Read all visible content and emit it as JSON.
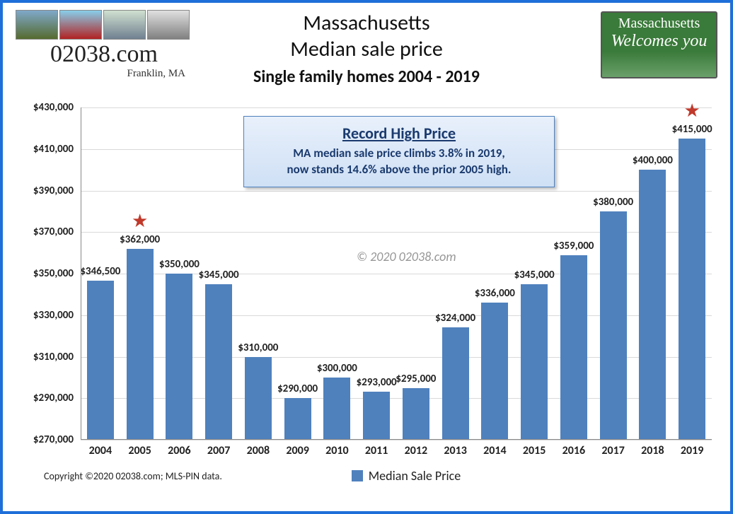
{
  "header": {
    "logo_domain": "02038.com",
    "logo_tagline": "Franklin, MA",
    "title_line1": "Massachusetts",
    "title_line2": "Median sale price",
    "subtitle": "Single family homes 2004 - 2019",
    "badge_line1": "Massachusetts",
    "badge_line2": "Welcomes you"
  },
  "callout": {
    "heading": "Record High Price",
    "body_line1": "MA median sale price climbs 3.8% in 2019,",
    "body_line2": "now stands 14.6% above the prior 2005 high."
  },
  "watermark": "© 2020 02038.com",
  "chart": {
    "type": "bar",
    "ylim": [
      270000,
      430000
    ],
    "ytick_step": 20000,
    "ytick_labels": [
      "$270,000",
      "$290,000",
      "$310,000",
      "$330,000",
      "$350,000",
      "$370,000",
      "$390,000",
      "$410,000",
      "$430,000"
    ],
    "grid_color": "#d9d9d9",
    "axis_color": "#888888",
    "bar_color": "#4f81bd",
    "background_color": "#ffffff",
    "label_fontsize": 15,
    "categories": [
      "2004",
      "2005",
      "2006",
      "2007",
      "2008",
      "2009",
      "2010",
      "2011",
      "2012",
      "2013",
      "2014",
      "2015",
      "2016",
      "2017",
      "2018",
      "2019"
    ],
    "values": [
      346500,
      362000,
      350000,
      345000,
      310000,
      290000,
      300000,
      293000,
      295000,
      324000,
      336000,
      345000,
      359000,
      380000,
      400000,
      415000
    ],
    "value_labels": [
      "$346,500",
      "$362,000",
      "$350,000",
      "$345,000",
      "$310,000",
      "$290,000",
      "$300,000",
      "$293,000",
      "$295,000",
      "$324,000",
      "$336,000",
      "$345,000",
      "$359,000",
      "$380,000",
      "$400,000",
      "$415,000"
    ],
    "star_indices": [
      1,
      15
    ],
    "star_color": "#c0392b"
  },
  "legend": {
    "label": "Median Sale Price"
  },
  "footer": {
    "copyright": "Copyright ©2020 02038.com; MLS-PIN data."
  }
}
